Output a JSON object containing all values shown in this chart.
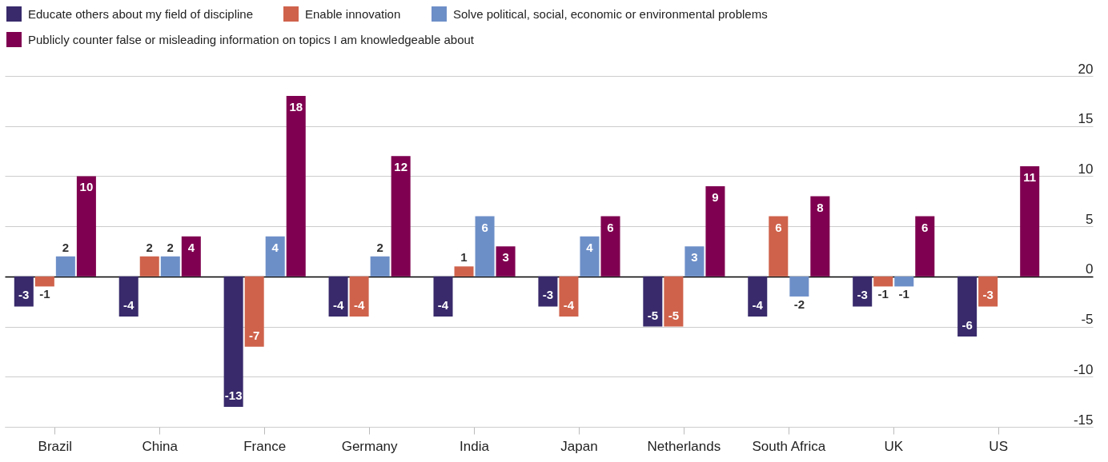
{
  "chart_data": {
    "type": "bar",
    "categories": [
      "Brazil",
      "China",
      "France",
      "Germany",
      "India",
      "Japan",
      "Netherlands",
      "South Africa",
      "UK",
      "US"
    ],
    "series": [
      {
        "name": "Educate others about my field of discipline",
        "color": "#382a6b",
        "values": [
          -3,
          -4,
          -13,
          -4,
          -4,
          -3,
          -5,
          -4,
          -3,
          -6
        ]
      },
      {
        "name": "Enable innovation",
        "color": "#cf624b",
        "values": [
          -1,
          2,
          -7,
          -4,
          1,
          -4,
          -5,
          6,
          -1,
          -3
        ]
      },
      {
        "name": "Solve political, social, economic or environmental problems",
        "color": "#6d8fc8",
        "values": [
          2,
          2,
          4,
          2,
          6,
          4,
          3,
          -2,
          -1,
          null
        ]
      },
      {
        "name": "Publicly counter false or misleading information on topics I am knowledgeable about",
        "color": "#7f0050",
        "values": [
          10,
          4,
          18,
          12,
          3,
          6,
          9,
          8,
          6,
          11
        ]
      }
    ],
    "ylim": [
      -15,
      20
    ],
    "yticks": [
      -15,
      -10,
      -5,
      0,
      5,
      10,
      15,
      20
    ],
    "grid": "y",
    "legend": "top left",
    "data_labels": true
  }
}
